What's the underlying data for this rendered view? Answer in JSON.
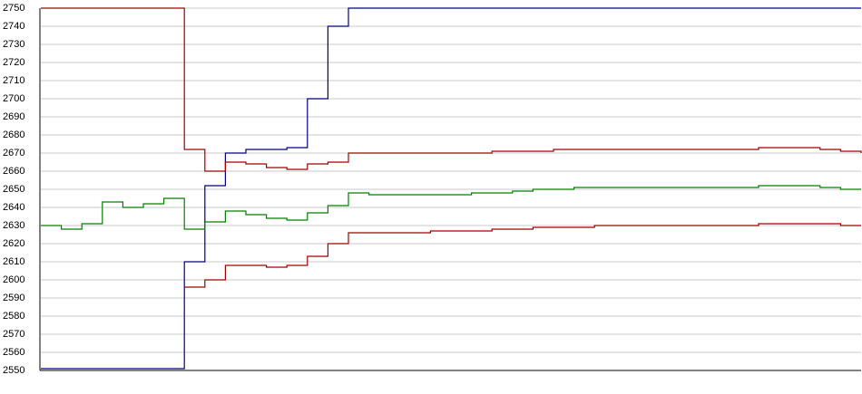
{
  "chart_data": {
    "type": "line",
    "categories": [
      null,
      null,
      null,
      null,
      null,
      null,
      null,
      null,
      null,
      null,
      null,
      null,
      null,
      null,
      null,
      null,
      null,
      null,
      null,
      null,
      null,
      null,
      null,
      null,
      null,
      null,
      null,
      null,
      null,
      null,
      null,
      null,
      null,
      null,
      null,
      null,
      null,
      null,
      null,
      null,
      null
    ],
    "series": [
      {
        "color": "#000080",
        "values": [
          2551,
          2551,
          2551,
          2551,
          2551,
          2551,
          2551,
          2610,
          2652,
          2670,
          2672,
          2672,
          2673,
          2700,
          2740,
          2750,
          2750,
          2750,
          2750,
          2750,
          2750,
          2750,
          2750,
          2750,
          2750,
          2750,
          2750,
          2750,
          2750,
          2750,
          2750,
          2750,
          2750,
          2750,
          2750,
          2750,
          2750,
          2750,
          2750,
          2750,
          2750
        ]
      },
      {
        "color": "#a00000",
        "values": [
          2750,
          2750,
          2750,
          2750,
          2750,
          2750,
          2750,
          2672,
          2660,
          2665,
          2664,
          2662,
          2661,
          2664,
          2665,
          2670,
          2670,
          2670,
          2670,
          2670,
          2670,
          2670,
          2671,
          2671,
          2671,
          2672,
          2672,
          2672,
          2672,
          2672,
          2672,
          2672,
          2672,
          2672,
          2672,
          2673,
          2673,
          2673,
          2672,
          2671,
          2670
        ]
      },
      {
        "color": "#008000",
        "values": [
          2630,
          2628,
          2631,
          2643,
          2640,
          2642,
          2645,
          2628,
          2632,
          2638,
          2636,
          2634,
          2633,
          2637,
          2641,
          2648,
          2647,
          2647,
          2647,
          2647,
          2647,
          2648,
          2648,
          2649,
          2650,
          2650,
          2651,
          2651,
          2651,
          2651,
          2651,
          2651,
          2651,
          2651,
          2651,
          2652,
          2652,
          2652,
          2651,
          2650,
          2650
        ]
      },
      {
        "color": "#a00000",
        "values": [
          null,
          null,
          null,
          null,
          null,
          null,
          null,
          2596,
          2600,
          2608,
          2608,
          2607,
          2608,
          2613,
          2620,
          2626,
          2626,
          2626,
          2626,
          2627,
          2627,
          2627,
          2628,
          2628,
          2629,
          2629,
          2629,
          2630,
          2630,
          2630,
          2630,
          2630,
          2630,
          2630,
          2630,
          2631,
          2631,
          2631,
          2631,
          2630,
          2630
        ]
      }
    ],
    "ylim": [
      2550,
      2750
    ],
    "yticks": [
      2550,
      2560,
      2570,
      2580,
      2590,
      2600,
      2610,
      2620,
      2630,
      2640,
      2650,
      2660,
      2670,
      2680,
      2690,
      2700,
      2710,
      2720,
      2730,
      2740,
      2750
    ],
    "grid": true
  }
}
